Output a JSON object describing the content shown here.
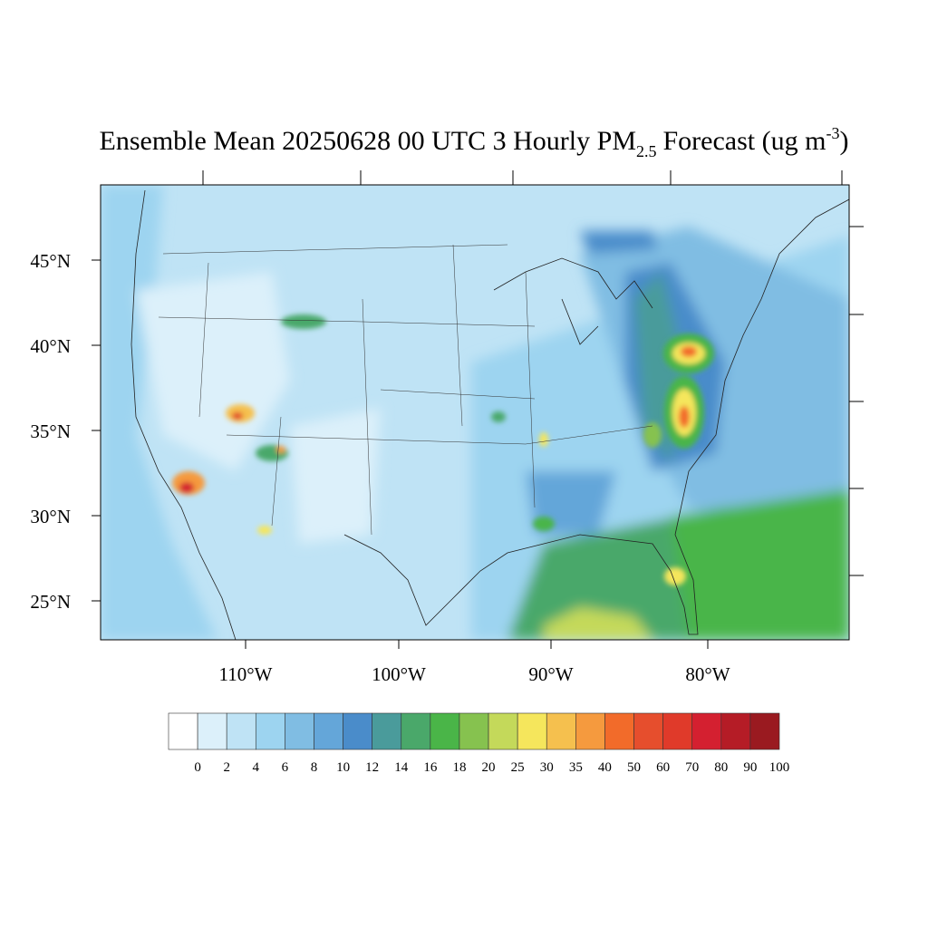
{
  "title": {
    "main": "Ensemble Mean 20250628 00 UTC 3 Hourly PM",
    "subscript": "2.5",
    "middle": "Forecast (ug m",
    "superscript": "-3",
    "end": ")"
  },
  "latitude_labels": [
    "45°N",
    "40°N",
    "35°N",
    "30°N",
    "25°N"
  ],
  "longitude_labels": [
    "110°W",
    "100°W",
    "90°W",
    "80°W"
  ],
  "colorbar": {
    "levels": [
      0,
      2,
      4,
      6,
      8,
      10,
      12,
      14,
      16,
      18,
      20,
      25,
      30,
      35,
      40,
      50,
      60,
      70,
      80,
      90,
      100
    ],
    "colors": [
      "#ffffff",
      "#dcf0fa",
      "#bfe3f5",
      "#9dd4f0",
      "#80bde3",
      "#64a6d9",
      "#4a8cca",
      "#4a9b9b",
      "#4aa86a",
      "#4ab548",
      "#86c24f",
      "#c4d95a",
      "#f5e65c",
      "#f5c04e",
      "#f59a3e",
      "#f26b2a",
      "#e64e2d",
      "#e03a2a",
      "#d42030",
      "#b51c26",
      "#9a1a20"
    ]
  }
}
